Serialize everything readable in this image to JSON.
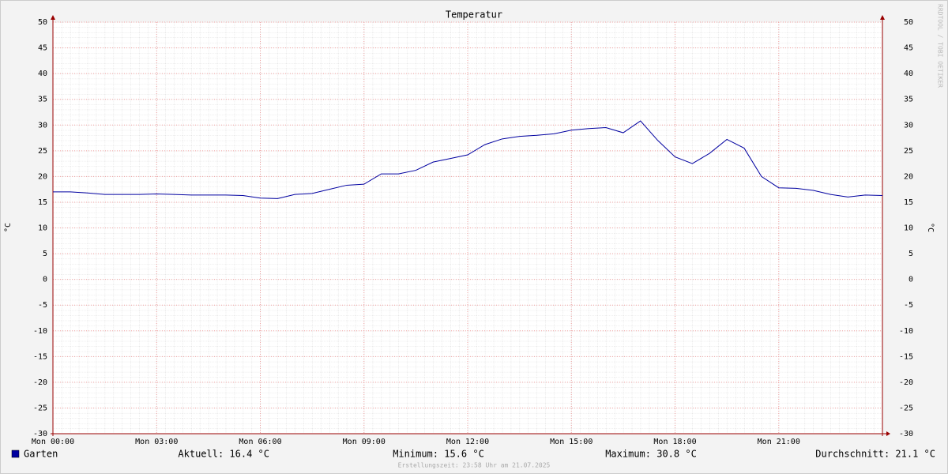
{
  "chart_data": {
    "type": "line",
    "title": "Temperatur",
    "y_label": "°C",
    "y2_label": "°C",
    "watermark": "RRDTOOL / TOBI OETIKER",
    "footer": "Erstellungszeit: 23:58 Uhr am 21.07.2025",
    "xlim": [
      0,
      24
    ],
    "xticks": [
      {
        "value": 0,
        "label": "Mon 00:00"
      },
      {
        "value": 3,
        "label": "Mon 03:00"
      },
      {
        "value": 6,
        "label": "Mon 06:00"
      },
      {
        "value": 9,
        "label": "Mon 09:00"
      },
      {
        "value": 12,
        "label": "Mon 12:00"
      },
      {
        "value": 15,
        "label": "Mon 15:00"
      },
      {
        "value": 18,
        "label": "Mon 18:00"
      },
      {
        "value": 21,
        "label": "Mon 21:00"
      }
    ],
    "ylim": [
      -30,
      50
    ],
    "yticks": [
      -30,
      -25,
      -20,
      -15,
      -10,
      -5,
      0,
      5,
      10,
      15,
      20,
      25,
      30,
      35,
      40,
      45,
      50
    ],
    "grid": true,
    "x": [
      0,
      0.5,
      1,
      1.5,
      2,
      2.5,
      3,
      3.5,
      4,
      4.5,
      5,
      5.5,
      6,
      6.5,
      7,
      7.5,
      8,
      8.5,
      9,
      9.5,
      10,
      10.5,
      11,
      11.5,
      12,
      12.5,
      13,
      13.5,
      14,
      14.5,
      15,
      15.5,
      16,
      16.5,
      17,
      17.5,
      18,
      18.5,
      19,
      19.5,
      20,
      20.5,
      21,
      21.5,
      22,
      22.5,
      23,
      23.5,
      24
    ],
    "series": [
      {
        "name": "Garten",
        "color": "#0000a0",
        "values": [
          17.0,
          17.0,
          16.8,
          16.5,
          16.5,
          16.5,
          16.6,
          16.5,
          16.4,
          16.4,
          16.4,
          16.3,
          15.8,
          15.7,
          16.5,
          16.7,
          17.5,
          18.3,
          18.5,
          20.5,
          20.5,
          21.2,
          22.8,
          23.5,
          24.2,
          26.2,
          27.3,
          27.8,
          28.0,
          28.3,
          29.0,
          29.3,
          29.5,
          28.5,
          30.8,
          27.0,
          23.8,
          22.5,
          24.5,
          27.2,
          25.5,
          20.0,
          17.8,
          17.7,
          17.3,
          16.5,
          16.0,
          16.4,
          16.3
        ]
      }
    ],
    "stats": [
      "Aktuell: 16.4 °C",
      "Minimum: 15.6 °C",
      "Maximum: 30.8 °C",
      "Durchschnitt: 21.1 °C"
    ]
  }
}
